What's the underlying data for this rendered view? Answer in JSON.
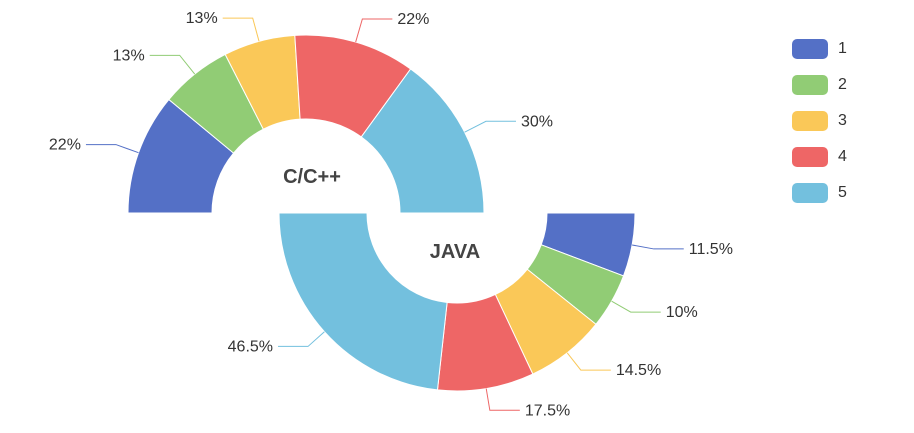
{
  "chart_data": [
    {
      "type": "pie",
      "title": "C/C++",
      "categories": [
        "1",
        "2",
        "3",
        "4",
        "5"
      ],
      "values": [
        22,
        13,
        13,
        22,
        30
      ],
      "labels": [
        "22%",
        "13%",
        "13%",
        "22%",
        "30%"
      ]
    },
    {
      "type": "pie",
      "title": "JAVA",
      "categories": [
        "1",
        "2",
        "3",
        "4",
        "5"
      ],
      "values": [
        11.5,
        10,
        14.5,
        17.5,
        46.5
      ],
      "labels": [
        "11.5%",
        "10%",
        "14.5%",
        "17.5%",
        "46.5%"
      ]
    }
  ],
  "legend": {
    "position": "top-right",
    "items": [
      {
        "label": "1",
        "color": "#5470c6"
      },
      {
        "label": "2",
        "color": "#91cc75"
      },
      {
        "label": "3",
        "color": "#fac858"
      },
      {
        "label": "4",
        "color": "#ee6666"
      },
      {
        "label": "5",
        "color": "#73c0de"
      }
    ]
  }
}
